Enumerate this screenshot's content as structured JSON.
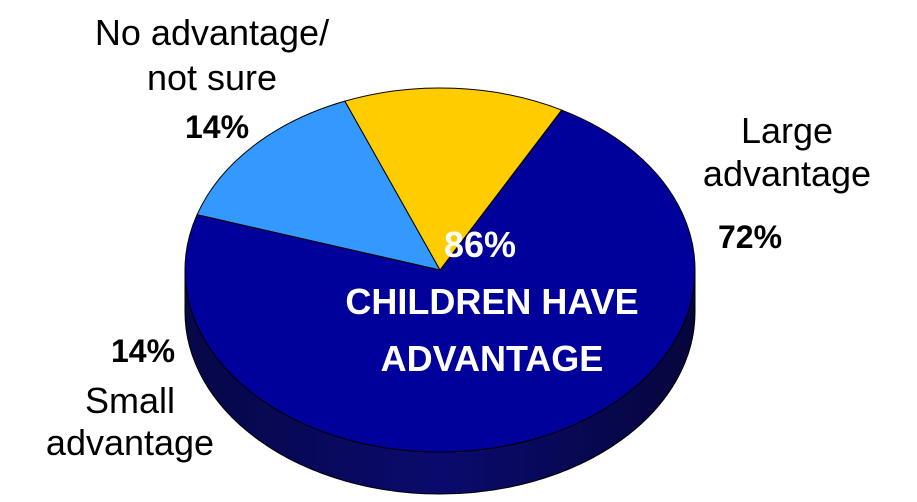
{
  "chart_data": {
    "type": "pie",
    "style": "3d",
    "slices": [
      {
        "label_lines": [
          "Large",
          "advantage"
        ],
        "value": 72,
        "value_label": "72%",
        "color": "#00009a",
        "side_color": "#0a0a6e"
      },
      {
        "label_lines": [
          "Small",
          "advantage"
        ],
        "value": 14,
        "value_label": "14%",
        "color": "#3399ff",
        "side_color": "#1a5a99"
      },
      {
        "label_lines": [
          "No advantage/",
          "not sure"
        ],
        "value": 14,
        "value_label": "14%",
        "color": "#ffcc00",
        "side_color": "#b38f00"
      }
    ],
    "center_label": {
      "value": "86%",
      "lines": [
        "CHILDREN HAVE",
        "ADVANTAGE"
      ]
    },
    "legend": "none"
  }
}
